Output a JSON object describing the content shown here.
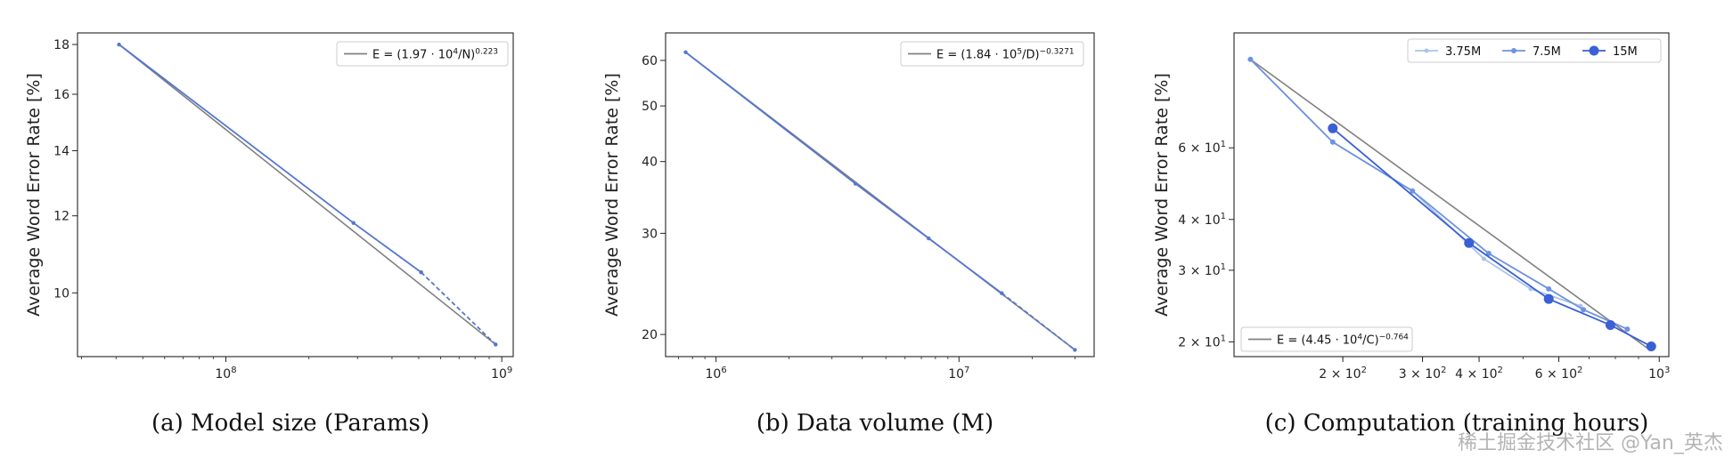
{
  "chart_data": [
    {
      "type": "line",
      "caption": "(a) Model size (Params)",
      "ylabel": "Average Word Error Rate [%]",
      "xscale": "log",
      "yscale": "log",
      "xlim": [
        29000000.0,
        1100000000.0
      ],
      "ylim": [
        8.6,
        18.5
      ],
      "xticks": [
        {
          "v": 100000000.0,
          "base": "10",
          "exp": "8"
        },
        {
          "v": 1000000000.0,
          "base": "10",
          "exp": "9"
        }
      ],
      "yticks": [
        {
          "v": 10,
          "label": "10"
        },
        {
          "v": 12,
          "label": "12"
        },
        {
          "v": 14,
          "label": "14"
        },
        {
          "v": 16,
          "label": "16"
        },
        {
          "v": 18,
          "label": "18"
        }
      ],
      "fit": {
        "label_pre": "E = (1.97 · 10",
        "label_sup1": "4",
        "label_mid": "/N)",
        "label_sup2": "0.223",
        "x": [
          41000000.0,
          950000000.0
        ],
        "y": [
          18.0,
          8.85
        ],
        "color": "#808080"
      },
      "series": [
        {
          "x": [
            41000000.0,
            290000000.0,
            510000000.0
          ],
          "y": [
            18.0,
            11.8,
            10.5
          ],
          "color": "#5577d0",
          "style": "solid"
        },
        {
          "x": [
            510000000.0,
            950000000.0
          ],
          "y": [
            10.5,
            8.85
          ],
          "color": "#5577d0",
          "style": "dashed"
        }
      ],
      "legend": "top-right"
    },
    {
      "type": "line",
      "caption": "(b) Data volume (M)",
      "ylabel": "Average Word Error Rate [%]",
      "xscale": "log",
      "yscale": "log",
      "xlim": [
        620000.0,
        36000000.0
      ],
      "ylim": [
        18.3,
        67
      ],
      "xticks": [
        {
          "v": 1000000.0,
          "base": "10",
          "exp": "6"
        },
        {
          "v": 10000000.0,
          "base": "10",
          "exp": "7"
        }
      ],
      "yticks": [
        {
          "v": 20,
          "label": "20"
        },
        {
          "v": 30,
          "label": "30"
        },
        {
          "v": 40,
          "label": "40"
        },
        {
          "v": 50,
          "label": "50"
        },
        {
          "v": 60,
          "label": "60"
        }
      ],
      "fit": {
        "label_pre": "E = (1.84 · 10",
        "label_sup1": "5",
        "label_mid": "/D)",
        "label_sup2": "−0.3271",
        "x": [
          750000.0,
          30000000.0
        ],
        "y": [
          62.0,
          18.8
        ],
        "color": "#808080"
      },
      "series": [
        {
          "x": [
            750000.0,
            3750000.0,
            7500000.0,
            15000000.0
          ],
          "y": [
            62.0,
            36.6,
            29.4,
            23.6
          ],
          "color": "#5577d0",
          "style": "solid"
        },
        {
          "x": [
            15000000.0,
            30000000.0
          ],
          "y": [
            23.6,
            18.8
          ],
          "color": "#5577d0",
          "style": "dashed"
        }
      ],
      "legend": "top-right"
    },
    {
      "type": "line",
      "caption": "(c) Computation (training hours)",
      "ylabel": "Average Word Error Rate [%]",
      "xscale": "log",
      "yscale": "log",
      "xlim": [
        115,
        1050
      ],
      "ylim": [
        18.4,
        115
      ],
      "xticks": [
        {
          "v": 200,
          "base": "2 × 10",
          "exp": "2"
        },
        {
          "v": 300,
          "base": "3 × 10",
          "exp": "2"
        },
        {
          "v": 400,
          "base": "4 × 10",
          "exp": "2"
        },
        {
          "v": 600,
          "base": "6 × 10",
          "exp": "2"
        },
        {
          "v": 1000,
          "base": "10",
          "exp": "3"
        }
      ],
      "yticks": [
        {
          "v": 20,
          "base": "2 × 10",
          "exp": "1"
        },
        {
          "v": 30,
          "base": "3 × 10",
          "exp": "1"
        },
        {
          "v": 40,
          "base": "4 × 10",
          "exp": "1"
        },
        {
          "v": 60,
          "base": "6 × 10",
          "exp": "1"
        }
      ],
      "fit": {
        "label_pre": "E = (4.45 · 10",
        "label_sup1": "4",
        "label_mid": "/C)",
        "label_sup2": "−0.764",
        "x": [
          125,
          960
        ],
        "y": [
          99,
          19.0
        ],
        "color": "#808080"
      },
      "series": [
        {
          "name": "3.75M",
          "x": [
            125,
            190,
            285,
            410,
            520,
            670
          ],
          "y": [
            99,
            62,
            47,
            32,
            27,
            24.5
          ],
          "color": "#aac4e8",
          "marker": 5
        },
        {
          "name": "7.5M",
          "x": [
            125,
            190,
            285,
            420,
            570,
            680,
            850
          ],
          "y": [
            99,
            62,
            47,
            33,
            27,
            24,
            21.5
          ],
          "color": "#6e93e0",
          "marker": 6
        },
        {
          "name": "15M",
          "x": [
            190,
            380,
            570,
            780,
            960
          ],
          "y": [
            67,
            35,
            25.5,
            22,
            19.5
          ],
          "color": "#3a5fd6",
          "marker": 11
        }
      ],
      "legend_fit": "bottom-left",
      "legend": "top-right"
    }
  ],
  "watermark": "稀土掘金技术社区 @Yan_英杰"
}
